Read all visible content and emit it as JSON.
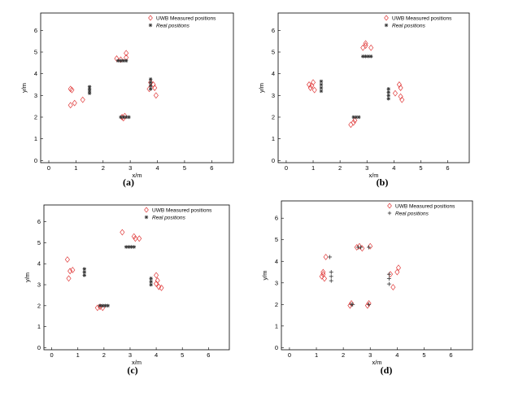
{
  "chart_data": [
    {
      "type": "scatter",
      "panel_label": "(a)",
      "xlabel": "x/m",
      "ylabel": "y/m",
      "xlim": [
        -0.3,
        6.8
      ],
      "ylim": [
        -0.1,
        6.8
      ],
      "xticks": [
        0,
        1,
        2,
        3,
        4,
        5,
        6
      ],
      "yticks": [
        0,
        1,
        2,
        3,
        4,
        5,
        6
      ],
      "legend_position": "top-right",
      "series": [
        {
          "name": "UWB Measured positions",
          "marker": "diamond",
          "color": "#e03a3a",
          "points": [
            [
              0.8,
              3.3
            ],
            [
              0.85,
              3.25
            ],
            [
              0.8,
              2.55
            ],
            [
              0.95,
              2.65
            ],
            [
              1.25,
              2.8
            ],
            [
              2.5,
              4.7
            ],
            [
              2.65,
              4.65
            ],
            [
              2.85,
              4.75
            ],
            [
              2.85,
              4.95
            ],
            [
              2.7,
              2.0
            ],
            [
              2.75,
              1.95
            ],
            [
              2.8,
              2.05
            ],
            [
              3.75,
              3.6
            ],
            [
              3.85,
              3.5
            ],
            [
              3.9,
              3.35
            ],
            [
              3.95,
              3.0
            ],
            [
              3.7,
              3.3
            ]
          ]
        },
        {
          "name": "Real positions",
          "marker": "star",
          "color": "#333333",
          "points": [
            [
              1.5,
              3.4
            ],
            [
              1.5,
              3.3
            ],
            [
              1.5,
              3.2
            ],
            [
              1.5,
              3.1
            ],
            [
              2.55,
              4.6
            ],
            [
              2.65,
              4.6
            ],
            [
              2.75,
              4.6
            ],
            [
              2.85,
              4.6
            ],
            [
              2.65,
              2.0
            ],
            [
              2.75,
              2.0
            ],
            [
              2.85,
              2.0
            ],
            [
              2.95,
              2.0
            ],
            [
              3.75,
              3.3
            ],
            [
              3.75,
              3.45
            ],
            [
              3.75,
              3.6
            ],
            [
              3.75,
              3.75
            ]
          ]
        }
      ]
    },
    {
      "type": "scatter",
      "panel_label": "(b)",
      "xlabel": "x/m",
      "ylabel": "y/m",
      "xlim": [
        -0.3,
        6.8
      ],
      "ylim": [
        -0.1,
        6.8
      ],
      "xticks": [
        0,
        1,
        2,
        3,
        4,
        5,
        6
      ],
      "yticks": [
        0,
        1,
        2,
        3,
        4,
        5,
        6
      ],
      "legend_position": "top-right",
      "series": [
        {
          "name": "UWB Measured positions",
          "marker": "diamond",
          "color": "#e03a3a",
          "points": [
            [
              0.85,
              3.5
            ],
            [
              0.9,
              3.35
            ],
            [
              1.0,
              3.6
            ],
            [
              1.05,
              3.25
            ],
            [
              0.95,
              3.45
            ],
            [
              2.85,
              5.2
            ],
            [
              2.95,
              5.4
            ],
            [
              3.15,
              5.2
            ],
            [
              2.95,
              5.3
            ],
            [
              2.4,
              1.65
            ],
            [
              2.5,
              1.75
            ],
            [
              2.55,
              1.85
            ],
            [
              4.05,
              3.1
            ],
            [
              4.2,
              3.5
            ],
            [
              4.25,
              3.35
            ],
            [
              4.25,
              2.95
            ],
            [
              4.3,
              2.8
            ]
          ]
        },
        {
          "name": "Real positions",
          "marker": "star",
          "color": "#333333",
          "points": [
            [
              1.3,
              3.65
            ],
            [
              1.3,
              3.5
            ],
            [
              1.3,
              3.35
            ],
            [
              1.3,
              3.2
            ],
            [
              2.85,
              4.8
            ],
            [
              2.95,
              4.8
            ],
            [
              3.05,
              4.8
            ],
            [
              3.15,
              4.8
            ],
            [
              2.5,
              2.0
            ],
            [
              2.6,
              2.0
            ],
            [
              2.7,
              2.0
            ],
            [
              3.8,
              2.85
            ],
            [
              3.8,
              3.0
            ],
            [
              3.8,
              3.15
            ],
            [
              3.8,
              3.3
            ]
          ]
        }
      ]
    },
    {
      "type": "scatter",
      "panel_label": "(c)",
      "xlabel": "x/m",
      "ylabel": "y/m",
      "xlim": [
        -0.3,
        6.8
      ],
      "ylim": [
        -0.1,
        6.8
      ],
      "xticks": [
        0,
        1,
        2,
        3,
        4,
        5,
        6
      ],
      "yticks": [
        0,
        1,
        2,
        3,
        4,
        5,
        6
      ],
      "legend_position": "top-right",
      "series": [
        {
          "name": "UWB Measured positions",
          "marker": "diamond",
          "color": "#e03a3a",
          "points": [
            [
              0.6,
              4.2
            ],
            [
              0.65,
              3.3
            ],
            [
              0.7,
              3.65
            ],
            [
              0.8,
              3.7
            ],
            [
              2.7,
              5.5
            ],
            [
              3.15,
              5.3
            ],
            [
              3.2,
              5.2
            ],
            [
              3.35,
              5.2
            ],
            [
              1.75,
              1.9
            ],
            [
              1.85,
              1.95
            ],
            [
              1.95,
              1.9
            ],
            [
              4.0,
              3.45
            ],
            [
              4.05,
              3.2
            ],
            [
              4.0,
              3.05
            ],
            [
              4.1,
              2.9
            ],
            [
              4.2,
              2.85
            ]
          ]
        },
        {
          "name": "Real positions",
          "marker": "star",
          "color": "#333333",
          "points": [
            [
              1.25,
              3.75
            ],
            [
              1.25,
              3.6
            ],
            [
              1.25,
              3.45
            ],
            [
              2.85,
              4.8
            ],
            [
              2.95,
              4.8
            ],
            [
              3.05,
              4.8
            ],
            [
              3.15,
              4.8
            ],
            [
              1.85,
              2.0
            ],
            [
              1.95,
              2.0
            ],
            [
              2.05,
              2.0
            ],
            [
              2.15,
              2.0
            ],
            [
              3.8,
              3.0
            ],
            [
              3.8,
              3.15
            ],
            [
              3.8,
              3.3
            ]
          ]
        }
      ]
    },
    {
      "type": "scatter",
      "panel_label": "(d)",
      "xlabel": "x/m",
      "ylabel": "y/m",
      "xlim": [
        -0.3,
        6.8
      ],
      "ylim": [
        -0.1,
        6.8
      ],
      "xticks": [
        0,
        1,
        2,
        3,
        4,
        5,
        6
      ],
      "yticks": [
        0,
        1,
        2,
        3,
        4,
        5,
        6
      ],
      "legend_position": "top-right",
      "series": [
        {
          "name": "UWB Measured positions",
          "marker": "diamond",
          "color": "#e03a3a",
          "points": [
            [
              1.2,
              3.3
            ],
            [
              1.25,
              3.5
            ],
            [
              1.3,
              3.2
            ],
            [
              1.25,
              3.4
            ],
            [
              1.35,
              4.2
            ],
            [
              2.5,
              4.65
            ],
            [
              2.6,
              4.7
            ],
            [
              2.7,
              4.6
            ],
            [
              3.0,
              4.7
            ],
            [
              2.25,
              1.95
            ],
            [
              2.3,
              2.05
            ],
            [
              2.9,
              1.95
            ],
            [
              2.95,
              2.05
            ],
            [
              3.75,
              3.4
            ],
            [
              3.85,
              2.8
            ],
            [
              4.0,
              3.5
            ],
            [
              4.05,
              3.7
            ]
          ]
        },
        {
          "name": "Real positions",
          "marker": "plus",
          "color": "#333333",
          "points": [
            [
              1.5,
              4.2
            ],
            [
              1.55,
              3.5
            ],
            [
              1.55,
              3.3
            ],
            [
              1.55,
              3.1
            ],
            [
              2.55,
              4.65
            ],
            [
              2.65,
              4.65
            ],
            [
              2.95,
              4.65
            ],
            [
              2.3,
              2.0
            ],
            [
              2.35,
              2.0
            ],
            [
              2.95,
              2.0
            ],
            [
              3.7,
              3.4
            ],
            [
              3.7,
              3.2
            ],
            [
              3.7,
              2.95
            ]
          ]
        }
      ]
    }
  ]
}
